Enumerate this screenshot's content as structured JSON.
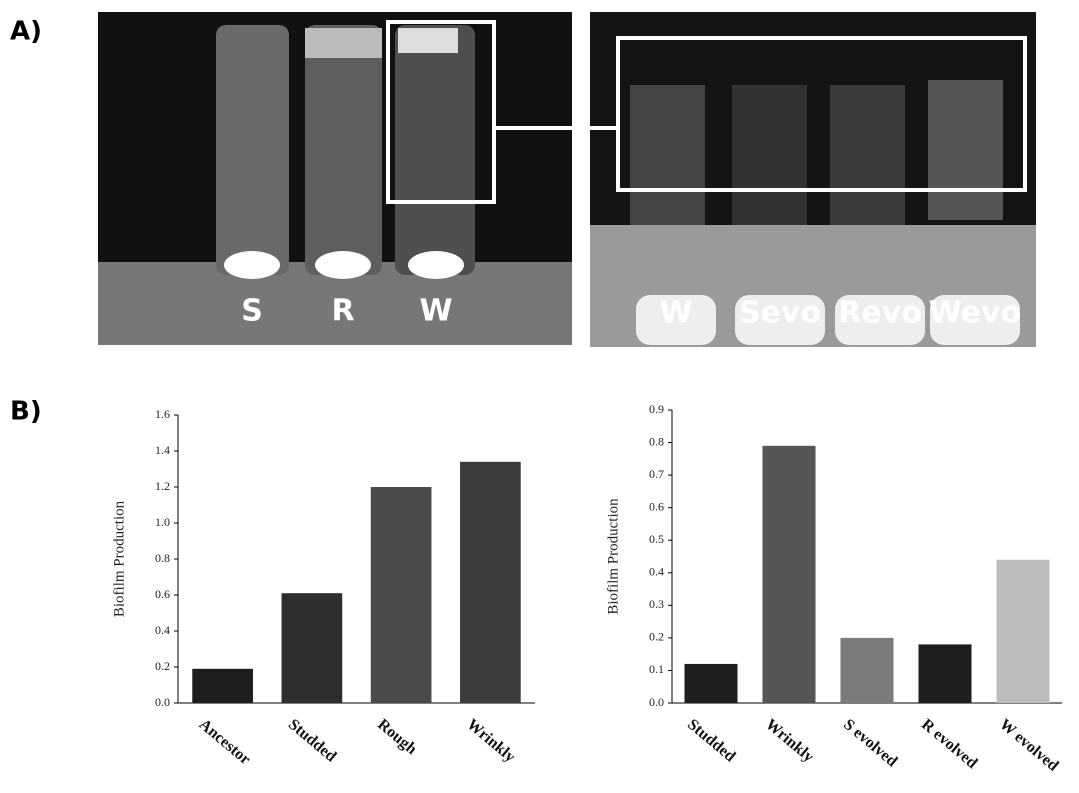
{
  "panels": {
    "a": {
      "label": "A)",
      "left_labels": [
        "S",
        "R",
        "W"
      ],
      "right_labels": [
        "W",
        "Sevo",
        "Revo",
        "Wevo"
      ]
    },
    "b": {
      "label": "B)"
    }
  },
  "chart_data": [
    {
      "type": "bar",
      "y_label": "Biofilm Production",
      "categories": [
        "Ancestor",
        "Studded",
        "Rough",
        "Wrinkly"
      ],
      "values": [
        0.19,
        0.61,
        1.2,
        1.34
      ],
      "colors": [
        "#1e1e1e",
        "#2e2e2e",
        "#4a4a4a",
        "#3c3c3c"
      ],
      "ylim": [
        0,
        1.6
      ],
      "yticks": [
        {
          "value": 0,
          "label": "0.0"
        },
        0.2,
        0.4,
        0.6,
        0.8,
        {
          "value": 1,
          "label": "1.0"
        },
        1.2,
        1.4,
        1.6
      ]
    },
    {
      "type": "bar",
      "y_label": "Biofilm Production",
      "categories": [
        "Studded",
        "Wrinkly",
        "S evolved",
        "R evolved",
        "W evolved"
      ],
      "values": [
        0.12,
        0.79,
        0.2,
        0.18,
        0.44
      ],
      "colors": [
        "#1e1e1e",
        "#555555",
        "#7a7a7a",
        "#1e1e1e",
        "#bdbdbd"
      ],
      "ylim": [
        0,
        0.9
      ],
      "yticks": [
        {
          "value": 0,
          "label": "0.0"
        },
        0.1,
        0.2,
        0.3,
        0.4,
        0.5,
        0.6,
        0.7,
        0.8,
        0.9
      ]
    }
  ]
}
